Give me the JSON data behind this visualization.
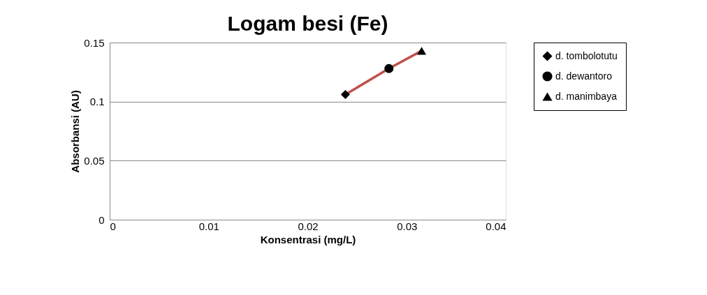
{
  "chart_data": {
    "type": "scatter",
    "title": "Logam besi (Fe)",
    "xlabel": "Konsentrasi (mg/L)",
    "ylabel": "Absorbansi (AU)",
    "xlim": [
      0,
      0.04
    ],
    "xticks": [
      0,
      0.01,
      0.02,
      0.03,
      0.04
    ],
    "ylim": [
      0,
      0.15
    ],
    "yticks": [
      0,
      0.05,
      0.1,
      0.15
    ],
    "grid": "y",
    "legend": "right",
    "series": [
      {
        "type": "line",
        "color": "#c0504d",
        "x": [
          0.0238,
          0.0282,
          0.0315
        ],
        "values": [
          0.106,
          0.128,
          0.143
        ]
      },
      {
        "name": "d. tombolotutu",
        "color": "#000000",
        "x": [
          0.0238
        ],
        "values": [
          0.106
        ],
        "marker": "diamond"
      },
      {
        "name": "d. dewantoro",
        "color": "#000000",
        "x": [
          0.0282
        ],
        "values": [
          0.128
        ],
        "marker": "circle"
      },
      {
        "name": "d. manimbaya",
        "color": "#000000",
        "x": [
          0.0315
        ],
        "values": [
          0.143
        ],
        "marker": "triangle"
      }
    ]
  }
}
